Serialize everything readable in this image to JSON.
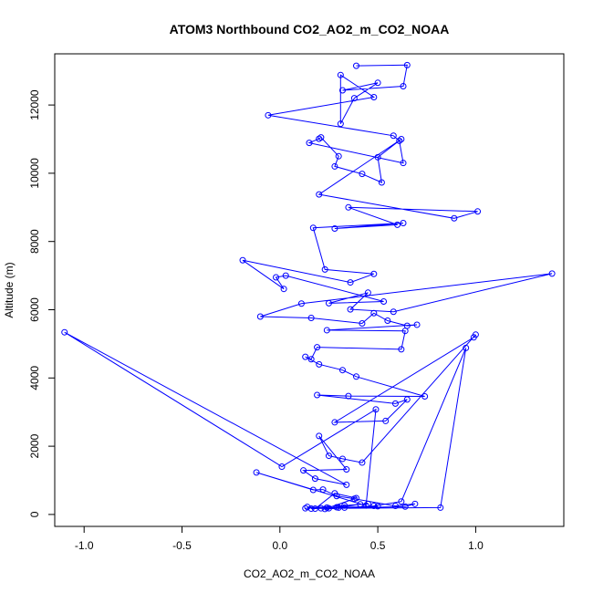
{
  "chart_data": {
    "type": "line",
    "title": "ATOM3 Northbound CO2_AO2_m_CO2_NOAA",
    "xlabel": "CO2_AO2_m_CO2_NOAA",
    "ylabel": "Altitude (m)",
    "xlim": [
      -1.15,
      1.45
    ],
    "ylim": [
      -350,
      13500
    ],
    "xticks": [
      -1.0,
      -0.5,
      0.0,
      0.5,
      1.0
    ],
    "xtick_labels": [
      "-1.0",
      "-0.5",
      "0.0",
      "0.5",
      "1.0"
    ],
    "yticks": [
      0,
      2000,
      4000,
      6000,
      8000,
      10000,
      12000
    ],
    "ytick_labels": [
      "0",
      "2000",
      "4000",
      "6000",
      "8000",
      "10000",
      "12000"
    ],
    "grid": false,
    "marker": "open-circle",
    "color": "#0000ff",
    "series": [
      {
        "x": [
          0.39,
          0.65,
          0.63,
          0.32,
          0.5,
          0.38,
          0.31,
          0.31,
          0.48,
          -0.06,
          0.58,
          0.61,
          0.63,
          0.15,
          0.2,
          0.21,
          0.3,
          0.28,
          0.42,
          0.52,
          0.5,
          0.62,
          0.2,
          0.89,
          1.01,
          0.35,
          0.6,
          0.28,
          0.63,
          0.17,
          0.23,
          0.48,
          0.36,
          -0.19,
          0.02,
          -0.02,
          0.03,
          0.53,
          0.25,
          0.45,
          0.36,
          0.58,
          1.39,
          0.11,
          -0.1,
          0.16,
          0.42,
          0.48,
          0.55,
          0.65,
          0.7,
          0.24,
          0.64,
          0.62,
          0.19,
          0.16,
          0.13,
          0.2,
          0.32,
          0.39,
          0.74,
          0.35,
          0.19,
          0.59,
          0.65,
          0.54,
          0.28,
          0.99,
          1.0,
          0.42,
          0.32,
          0.25,
          0.2,
          0.34,
          0.12,
          0.18,
          0.34,
          -1.1,
          0.01,
          0.49,
          0.44,
          -0.12,
          0.17,
          0.22,
          0.29,
          0.38,
          0.59,
          0.69,
          0.64,
          0.25,
          0.82,
          0.95,
          0.62,
          0.48,
          0.33,
          0.16,
          0.24,
          0.14,
          0.21,
          0.29,
          0.33,
          0.13,
          0.45,
          0.41,
          0.3,
          0.5,
          0.23,
          0.39,
          0.28,
          0.18
        ],
        "y": [
          13150,
          13170,
          12550,
          12430,
          12650,
          12200,
          11450,
          12880,
          12230,
          11700,
          11100,
          10950,
          10300,
          10890,
          11010,
          11050,
          10500,
          10200,
          9980,
          9730,
          10470,
          11000,
          9380,
          8680,
          8880,
          9000,
          8490,
          8380,
          8540,
          8400,
          7180,
          7050,
          6800,
          7450,
          6610,
          6950,
          7000,
          6240,
          6190,
          6500,
          6010,
          5940,
          7060,
          6180,
          5800,
          5760,
          5600,
          5900,
          5680,
          5530,
          5560,
          5400,
          5380,
          4840,
          4900,
          4550,
          4620,
          4400,
          4230,
          4040,
          3460,
          3470,
          3500,
          3250,
          3370,
          2740,
          2700,
          5190,
          5270,
          1520,
          1630,
          1720,
          2300,
          1320,
          1290,
          1050,
          870,
          5340,
          1400,
          3080,
          260,
          1230,
          720,
          730,
          540,
          460,
          250,
          310,
          230,
          180,
          200,
          4880,
          380,
          250,
          200,
          170,
          200,
          220,
          180,
          210,
          260,
          180,
          310,
          300,
          200,
          240,
          160,
          480,
          620,
          170
        ]
      }
    ]
  }
}
